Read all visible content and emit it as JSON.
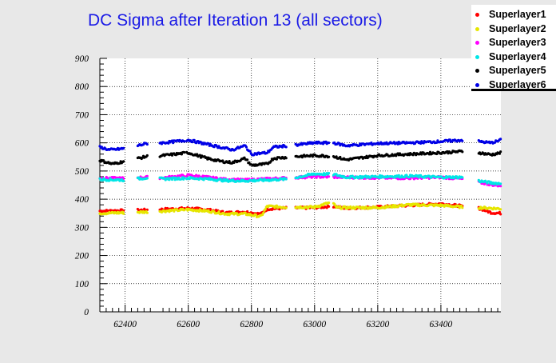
{
  "chart_data": {
    "type": "scatter",
    "title": "DC Sigma after Iteration 13 (all sectors)",
    "xlabel": "",
    "ylabel": "",
    "xlim": [
      62320,
      63590
    ],
    "ylim": [
      0,
      900
    ],
    "grid": true,
    "legend_position": "top-right",
    "x_ticks": [
      "62400",
      "62600",
      "62800",
      "63000",
      "63200",
      "63400"
    ],
    "y_ticks": [
      "0",
      "100",
      "200",
      "300",
      "400",
      "500",
      "600",
      "700",
      "800",
      "900"
    ],
    "x_range_segments": [
      [
        62320,
        62395
      ],
      [
        62440,
        62470
      ],
      [
        62510,
        62590
      ],
      [
        62595,
        62910
      ],
      [
        62940,
        63045
      ],
      [
        63060,
        63470
      ],
      [
        63520,
        63590
      ]
    ],
    "series": [
      {
        "name": "Superlayer1",
        "color": "#ff0000",
        "points": [
          [
            62320,
            358
          ],
          [
            62400,
            360
          ],
          [
            62470,
            362
          ],
          [
            62520,
            364
          ],
          [
            62600,
            368
          ],
          [
            62660,
            363
          ],
          [
            62720,
            352
          ],
          [
            62780,
            355
          ],
          [
            62830,
            347
          ],
          [
            62850,
            365
          ],
          [
            62900,
            368
          ],
          [
            63000,
            370
          ],
          [
            63060,
            375
          ],
          [
            63100,
            368
          ],
          [
            63200,
            372
          ],
          [
            63300,
            378
          ],
          [
            63400,
            384
          ],
          [
            63470,
            375
          ],
          [
            63520,
            368
          ],
          [
            63560,
            352
          ],
          [
            63590,
            350
          ]
        ]
      },
      {
        "name": "Superlayer2",
        "color": "#e6e600",
        "points": [
          [
            62320,
            350
          ],
          [
            62400,
            352
          ],
          [
            62470,
            355
          ],
          [
            62520,
            358
          ],
          [
            62600,
            363
          ],
          [
            62660,
            358
          ],
          [
            62720,
            348
          ],
          [
            62780,
            348
          ],
          [
            62830,
            338
          ],
          [
            62850,
            375
          ],
          [
            62900,
            372
          ],
          [
            63000,
            372
          ],
          [
            63055,
            390
          ],
          [
            63070,
            370
          ],
          [
            63200,
            370
          ],
          [
            63300,
            380
          ],
          [
            63400,
            378
          ],
          [
            63470,
            372
          ],
          [
            63520,
            370
          ],
          [
            63560,
            368
          ],
          [
            63590,
            366
          ]
        ]
      },
      {
        "name": "Superlayer3",
        "color": "#ff00ff",
        "points": [
          [
            62320,
            475
          ],
          [
            62400,
            474
          ],
          [
            62470,
            478
          ],
          [
            62520,
            476
          ],
          [
            62600,
            485
          ],
          [
            62660,
            478
          ],
          [
            62720,
            470
          ],
          [
            62780,
            468
          ],
          [
            62850,
            472
          ],
          [
            62920,
            476
          ],
          [
            63000,
            480
          ],
          [
            63100,
            478
          ],
          [
            63200,
            476
          ],
          [
            63300,
            475
          ],
          [
            63400,
            478
          ],
          [
            63470,
            472
          ],
          [
            63520,
            460
          ],
          [
            63560,
            452
          ],
          [
            63590,
            448
          ]
        ]
      },
      {
        "name": "Superlayer4",
        "color": "#00e6e6",
        "points": [
          [
            62320,
            470
          ],
          [
            62400,
            468
          ],
          [
            62470,
            476
          ],
          [
            62520,
            472
          ],
          [
            62600,
            475
          ],
          [
            62660,
            472
          ],
          [
            62720,
            466
          ],
          [
            62780,
            465
          ],
          [
            62850,
            468
          ],
          [
            62920,
            472
          ],
          [
            63000,
            490
          ],
          [
            63060,
            488
          ],
          [
            63100,
            478
          ],
          [
            63200,
            480
          ],
          [
            63300,
            482
          ],
          [
            63400,
            478
          ],
          [
            63470,
            478
          ],
          [
            63520,
            465
          ],
          [
            63560,
            458
          ],
          [
            63590,
            455
          ]
        ]
      },
      {
        "name": "Superlayer5",
        "color": "#000000",
        "points": [
          [
            62320,
            538
          ],
          [
            62360,
            525
          ],
          [
            62400,
            535
          ],
          [
            62470,
            552
          ],
          [
            62520,
            555
          ],
          [
            62600,
            565
          ],
          [
            62660,
            545
          ],
          [
            62700,
            535
          ],
          [
            62740,
            530
          ],
          [
            62780,
            545
          ],
          [
            62800,
            520
          ],
          [
            62850,
            525
          ],
          [
            62870,
            545
          ],
          [
            62920,
            550
          ],
          [
            63000,
            555
          ],
          [
            63060,
            552
          ],
          [
            63100,
            540
          ],
          [
            63200,
            555
          ],
          [
            63300,
            560
          ],
          [
            63400,
            565
          ],
          [
            63470,
            570
          ],
          [
            63520,
            565
          ],
          [
            63560,
            558
          ],
          [
            63590,
            565
          ]
        ]
      },
      {
        "name": "Superlayer6",
        "color": "#0000e6",
        "points": [
          [
            62320,
            585
          ],
          [
            62350,
            575
          ],
          [
            62400,
            580
          ],
          [
            62470,
            598
          ],
          [
            62520,
            600
          ],
          [
            62600,
            610
          ],
          [
            62660,
            595
          ],
          [
            62700,
            585
          ],
          [
            62740,
            575
          ],
          [
            62780,
            590
          ],
          [
            62800,
            560
          ],
          [
            62850,
            565
          ],
          [
            62870,
            585
          ],
          [
            62920,
            590
          ],
          [
            63000,
            600
          ],
          [
            63060,
            600
          ],
          [
            63100,
            590
          ],
          [
            63200,
            598
          ],
          [
            63300,
            600
          ],
          [
            63400,
            605
          ],
          [
            63470,
            610
          ],
          [
            63520,
            605
          ],
          [
            63560,
            600
          ],
          [
            63590,
            610
          ]
        ]
      }
    ]
  }
}
